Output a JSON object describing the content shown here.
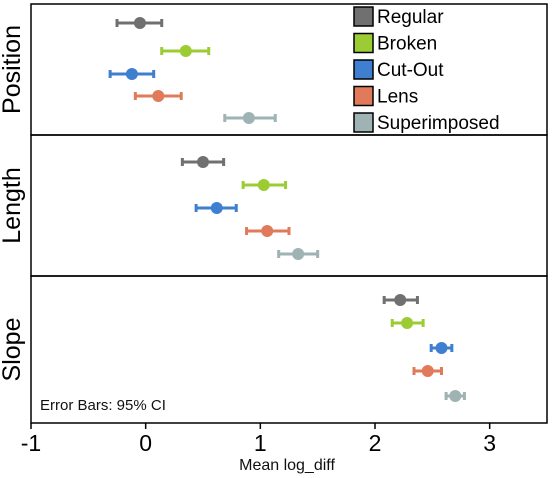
{
  "chart_data": {
    "type": "scatter",
    "xlabel": "Mean log_diff",
    "xlim": [
      -1,
      3.5
    ],
    "xticks": [
      -1,
      0,
      1,
      2,
      3
    ],
    "xtick_labels": [
      "-1",
      "0",
      "1",
      "2",
      "3"
    ],
    "panels": [
      "Position",
      "Length",
      "Slope"
    ],
    "legend": {
      "placement": "top-right",
      "panel": "Position"
    },
    "annotation": "Error Bars: 95% CI",
    "series": [
      {
        "name": "Regular",
        "color": "#707070",
        "values": {
          "Position": {
            "mean": -0.05,
            "lo": -0.25,
            "hi": 0.14
          },
          "Length": {
            "mean": 0.5,
            "lo": 0.32,
            "hi": 0.68
          },
          "Slope": {
            "mean": 2.22,
            "lo": 2.08,
            "hi": 2.37
          }
        }
      },
      {
        "name": "Broken",
        "color": "#9ccc33",
        "values": {
          "Position": {
            "mean": 0.35,
            "lo": 0.14,
            "hi": 0.55
          },
          "Length": {
            "mean": 1.03,
            "lo": 0.85,
            "hi": 1.22
          },
          "Slope": {
            "mean": 2.28,
            "lo": 2.15,
            "hi": 2.42
          }
        }
      },
      {
        "name": "Cut-Out",
        "color": "#3f7fcf",
        "values": {
          "Position": {
            "mean": -0.12,
            "lo": -0.31,
            "hi": 0.07
          },
          "Length": {
            "mean": 0.62,
            "lo": 0.44,
            "hi": 0.79
          },
          "Slope": {
            "mean": 2.58,
            "lo": 2.49,
            "hi": 2.67
          }
        }
      },
      {
        "name": "Lens",
        "color": "#e07a5a",
        "values": {
          "Position": {
            "mean": 0.11,
            "lo": -0.09,
            "hi": 0.31
          },
          "Length": {
            "mean": 1.06,
            "lo": 0.88,
            "hi": 1.25
          },
          "Slope": {
            "mean": 2.46,
            "lo": 2.34,
            "hi": 2.58
          }
        }
      },
      {
        "name": "Superimposed",
        "color": "#9fb2b4",
        "values": {
          "Position": {
            "mean": 0.9,
            "lo": 0.69,
            "hi": 1.13
          },
          "Length": {
            "mean": 1.33,
            "lo": 1.16,
            "hi": 1.5
          },
          "Slope": {
            "mean": 2.7,
            "lo": 2.62,
            "hi": 2.78
          }
        }
      }
    ]
  }
}
